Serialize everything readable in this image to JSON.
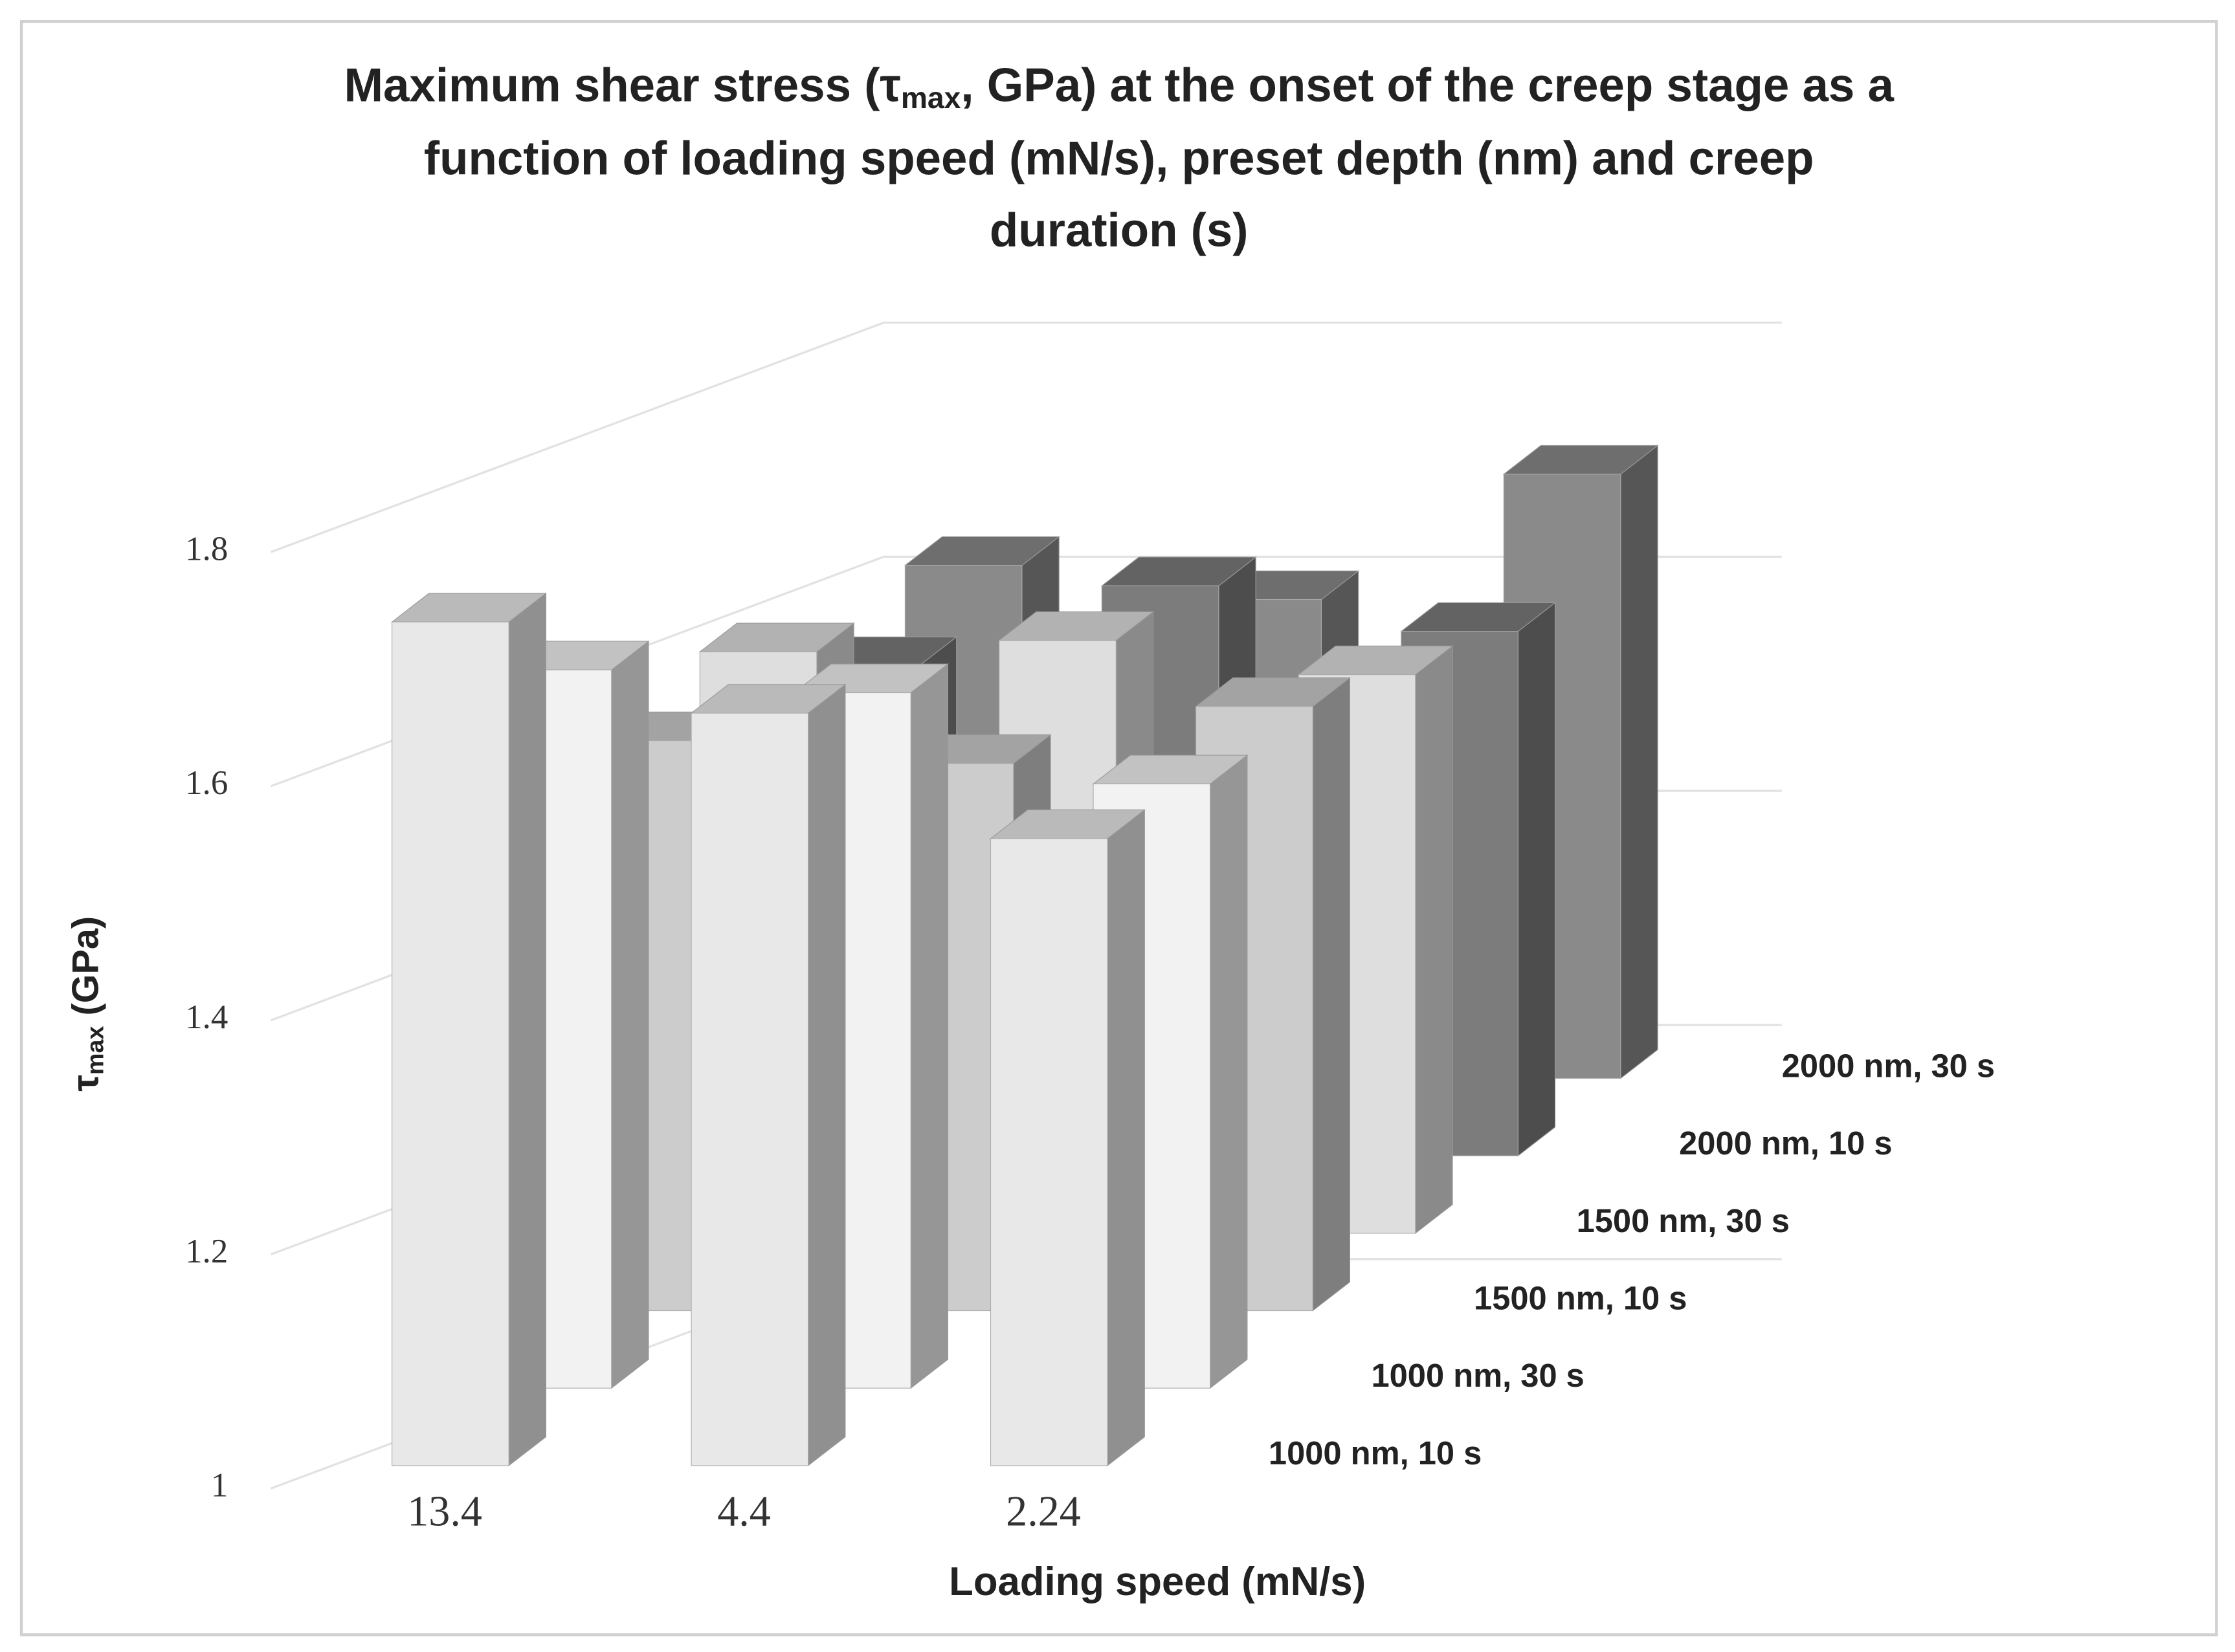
{
  "chart_data": {
    "type": "bar3d",
    "title": [
      "Maximum shear stress (τ",
      "max",
      ", GPa) at the onset of the creep stage as a",
      "function of loading speed (mN/s), preset depth (nm) and creep",
      "duration (s)"
    ],
    "y_label": [
      "τ",
      "max",
      " (GPa)"
    ],
    "x_label": "Loading speed (mN/s)",
    "categories": [
      "13.4",
      "4.4",
      "2.24"
    ],
    "series": [
      {
        "name": "1000 nm, 10 s",
        "color": "#e8e8e8",
        "values": [
          1.74,
          1.66,
          1.55
        ]
      },
      {
        "name": "1000 nm, 30 s",
        "color": "#f2f2f2",
        "values": [
          1.63,
          1.61,
          1.53
        ]
      },
      {
        "name": "1500 nm, 10 s",
        "color": "#cccccc",
        "values": [
          1.5,
          1.48,
          1.53
        ]
      },
      {
        "name": "1500 nm, 30 s",
        "color": "#dedede",
        "values": [
          1.51,
          1.52,
          1.49
        ]
      },
      {
        "name": "2000 nm, 10 s",
        "color": "#7c7c7c",
        "values": [
          1.43,
          1.5,
          1.46
        ]
      },
      {
        "name": "2000 nm, 30 s",
        "color": "#8a8a8a",
        "values": [
          1.45,
          1.42,
          1.53
        ]
      }
    ],
    "ylim": [
      1,
      1.8
    ],
    "yticks": [
      1,
      1.2,
      1.4,
      1.6,
      1.8
    ],
    "grid": true
  }
}
